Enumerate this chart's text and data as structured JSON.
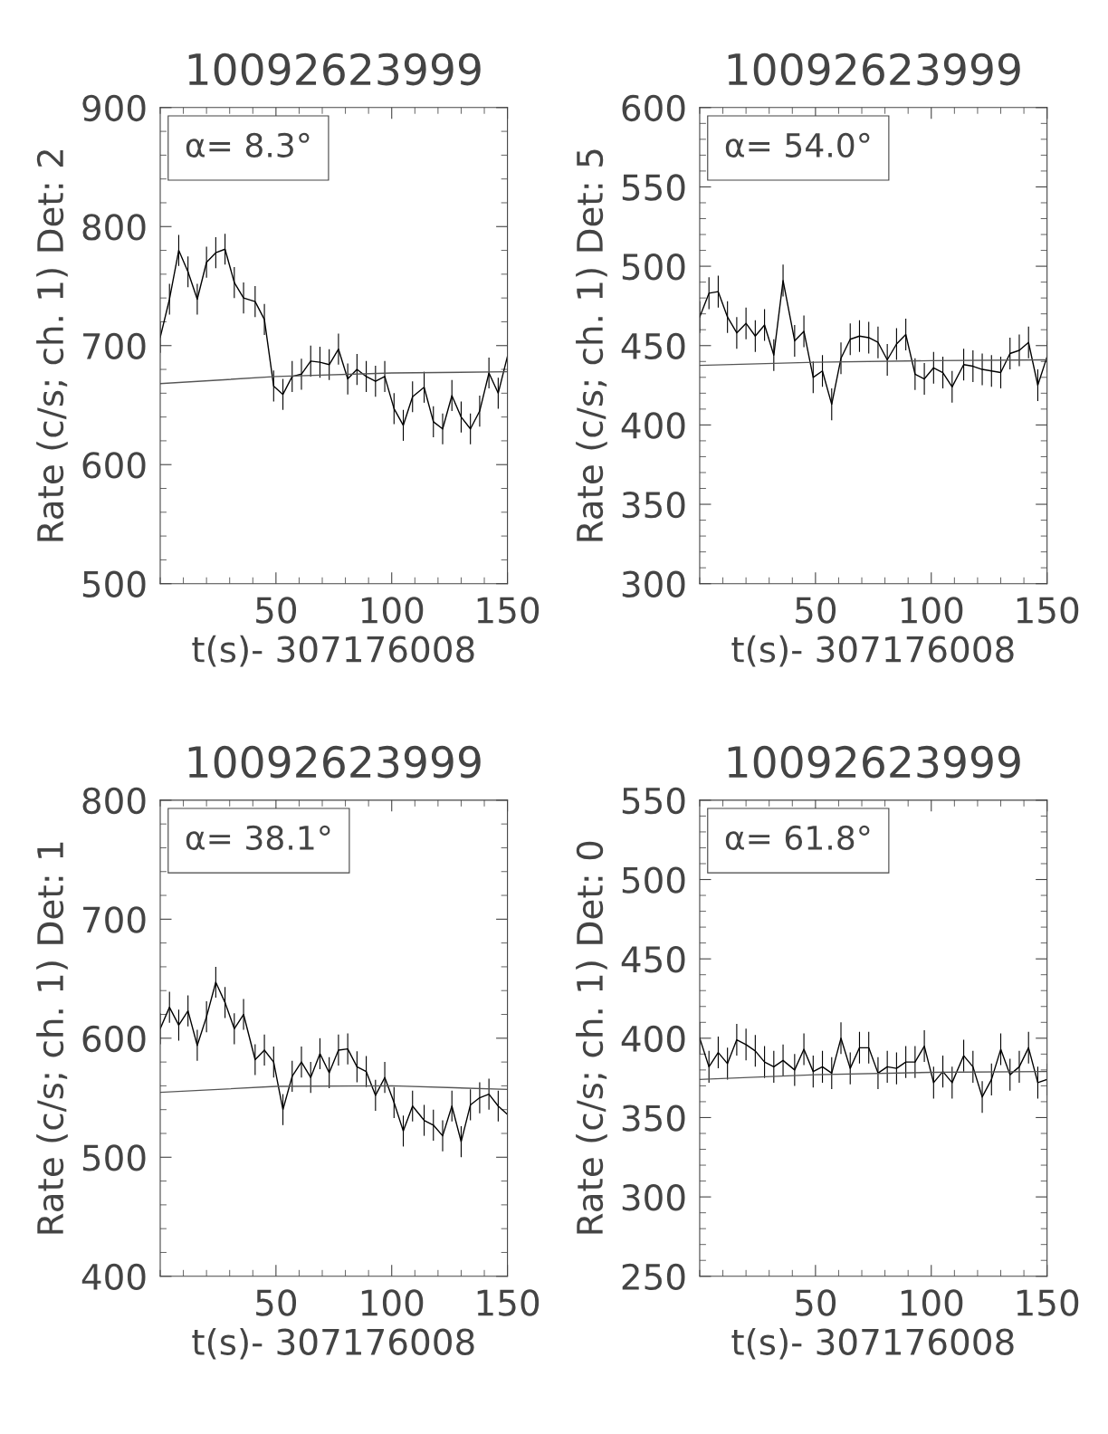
{
  "chart_data": [
    {
      "type": "line",
      "title": "10092623999",
      "xlabel": "t(s)- 307176008",
      "ylabel": "Rate (c/s; ch. 1) Det: 2",
      "annotations": [
        "α= 8.3°"
      ],
      "xlim": [
        0,
        150
      ],
      "xticks": [
        50,
        100,
        150
      ],
      "ylim": [
        500,
        900
      ],
      "yticks": [
        500,
        600,
        700,
        800,
        900
      ],
      "grid": false,
      "legend": false,
      "marker": "none",
      "line_style": "solid",
      "series": [
        {
          "color": "#000000",
          "x": [
            0,
            4,
            8,
            12,
            16,
            20,
            24,
            28,
            32,
            36,
            41,
            45,
            49,
            53,
            57,
            61,
            65,
            69,
            73,
            77,
            81,
            85,
            89,
            93,
            97,
            101,
            105,
            109,
            114,
            118,
            122,
            126,
            130,
            134,
            138,
            142,
            146,
            150
          ],
          "values": [
            707,
            739,
            780,
            762,
            739,
            770,
            778,
            781,
            753,
            740,
            737,
            722,
            666,
            659,
            674,
            676,
            687,
            686,
            684,
            697,
            672,
            680,
            674,
            670,
            674,
            647,
            633,
            657,
            665,
            636,
            630,
            658,
            640,
            630,
            645,
            677,
            660,
            691
          ],
          "errors": [
            13,
            13,
            13,
            13,
            13,
            13,
            13,
            13,
            13,
            13,
            13,
            13,
            13,
            13,
            13,
            13,
            13,
            13,
            13,
            13,
            13,
            13,
            13,
            13,
            13,
            13,
            13,
            13,
            13,
            13,
            13,
            13,
            13,
            13,
            13,
            13,
            13,
            13
          ]
        },
        {
          "color": "#555555",
          "x": [
            0,
            50,
            100,
            150
          ],
          "values": [
            668,
            674,
            677,
            678
          ]
        }
      ]
    },
    {
      "type": "line",
      "title": "10092623999",
      "xlabel": "t(s)- 307176008",
      "ylabel": "Rate (c/s; ch. 1) Det: 5",
      "annotations": [
        "α= 54.0°"
      ],
      "xlim": [
        0,
        150
      ],
      "xticks": [
        50,
        100,
        150
      ],
      "ylim": [
        300,
        600
      ],
      "yticks": [
        300,
        350,
        400,
        450,
        500,
        550,
        600
      ],
      "grid": false,
      "legend": false,
      "marker": "none",
      "line_style": "solid",
      "series": [
        {
          "color": "#000000",
          "x": [
            0,
            4,
            8,
            12,
            16,
            20,
            24,
            28,
            32,
            36,
            41,
            45,
            49,
            53,
            57,
            61,
            65,
            69,
            73,
            77,
            81,
            85,
            89,
            93,
            97,
            101,
            105,
            109,
            114,
            118,
            122,
            126,
            130,
            134,
            138,
            142,
            146,
            150
          ],
          "values": [
            468,
            483,
            484,
            468,
            458,
            464,
            456,
            463,
            444,
            491,
            453,
            459,
            430,
            434,
            413,
            442,
            454,
            456,
            455,
            452,
            441,
            451,
            457,
            432,
            429,
            436,
            433,
            424,
            438,
            437,
            435,
            434,
            433,
            445,
            447,
            452,
            425,
            443
          ],
          "errors": [
            10,
            10,
            10,
            10,
            10,
            10,
            10,
            10,
            10,
            10,
            10,
            10,
            10,
            10,
            10,
            10,
            10,
            10,
            10,
            10,
            10,
            10,
            10,
            10,
            10,
            10,
            10,
            10,
            10,
            10,
            10,
            10,
            10,
            10,
            10,
            10,
            10,
            10
          ]
        },
        {
          "color": "#555555",
          "x": [
            0,
            50,
            100,
            150
          ],
          "values": [
            437.5,
            439.5,
            440.5,
            441
          ]
        }
      ]
    },
    {
      "type": "line",
      "title": "10092623999",
      "xlabel": "t(s)- 307176008",
      "ylabel": "Rate (c/s; ch. 1) Det: 1",
      "annotations": [
        "α= 38.1°"
      ],
      "xlim": [
        0,
        150
      ],
      "xticks": [
        50,
        100,
        150
      ],
      "ylim": [
        400,
        800
      ],
      "yticks": [
        400,
        500,
        600,
        700,
        800
      ],
      "grid": false,
      "legend": false,
      "marker": "none",
      "line_style": "solid",
      "series": [
        {
          "color": "#000000",
          "x": [
            0,
            4,
            8,
            12,
            16,
            20,
            24,
            28,
            32,
            36,
            41,
            45,
            49,
            53,
            57,
            61,
            65,
            69,
            73,
            77,
            81,
            85,
            89,
            93,
            97,
            101,
            105,
            109,
            114,
            118,
            122,
            126,
            130,
            134,
            138,
            142,
            146,
            150
          ],
          "values": [
            608,
            626,
            611,
            623,
            594,
            618,
            647,
            630,
            608,
            620,
            582,
            590,
            580,
            540,
            568,
            580,
            567,
            587,
            571,
            590,
            591,
            576,
            572,
            552,
            567,
            546,
            522,
            543,
            531,
            527,
            518,
            543,
            513,
            544,
            550,
            553,
            543,
            536
          ],
          "errors": [
            13,
            13,
            13,
            13,
            13,
            13,
            13,
            13,
            13,
            13,
            13,
            13,
            13,
            13,
            13,
            13,
            13,
            13,
            13,
            13,
            13,
            13,
            13,
            13,
            13,
            13,
            13,
            13,
            13,
            13,
            13,
            13,
            13,
            13,
            13,
            13,
            13,
            13
          ]
        },
        {
          "color": "#555555",
          "x": [
            0,
            50,
            100,
            150
          ],
          "values": [
            554.5,
            559.5,
            560,
            557
          ]
        }
      ]
    },
    {
      "type": "line",
      "title": "10092623999",
      "xlabel": "t(s)- 307176008",
      "ylabel": "Rate (c/s; ch. 1) Det: 0",
      "annotations": [
        "α= 61.8°"
      ],
      "xlim": [
        0,
        150
      ],
      "xticks": [
        50,
        100,
        150
      ],
      "ylim": [
        250,
        550
      ],
      "yticks": [
        250,
        300,
        350,
        400,
        450,
        500,
        550
      ],
      "grid": false,
      "legend": false,
      "marker": "none",
      "line_style": "solid",
      "series": [
        {
          "color": "#000000",
          "x": [
            0,
            4,
            8,
            12,
            16,
            20,
            24,
            28,
            32,
            36,
            41,
            45,
            49,
            53,
            57,
            61,
            65,
            69,
            73,
            77,
            81,
            85,
            89,
            93,
            97,
            101,
            105,
            109,
            114,
            118,
            122,
            126,
            130,
            134,
            138,
            142,
            146,
            150
          ],
          "values": [
            400,
            382,
            391,
            384,
            399,
            396,
            392,
            385,
            382,
            386,
            380,
            393,
            379,
            382,
            378,
            400,
            381,
            394,
            394,
            378,
            382,
            381,
            385,
            385,
            395,
            372,
            379,
            372,
            389,
            382,
            363,
            374,
            393,
            377,
            382,
            394,
            372,
            374
          ],
          "errors": [
            10,
            10,
            10,
            10,
            10,
            10,
            10,
            10,
            10,
            10,
            10,
            10,
            10,
            10,
            10,
            10,
            10,
            10,
            10,
            10,
            10,
            10,
            10,
            10,
            10,
            10,
            10,
            10,
            10,
            10,
            10,
            10,
            10,
            10,
            10,
            10,
            10,
            10
          ]
        },
        {
          "color": "#555555",
          "x": [
            0,
            50,
            100,
            150
          ],
          "values": [
            374,
            377,
            378.5,
            379
          ]
        }
      ]
    }
  ]
}
